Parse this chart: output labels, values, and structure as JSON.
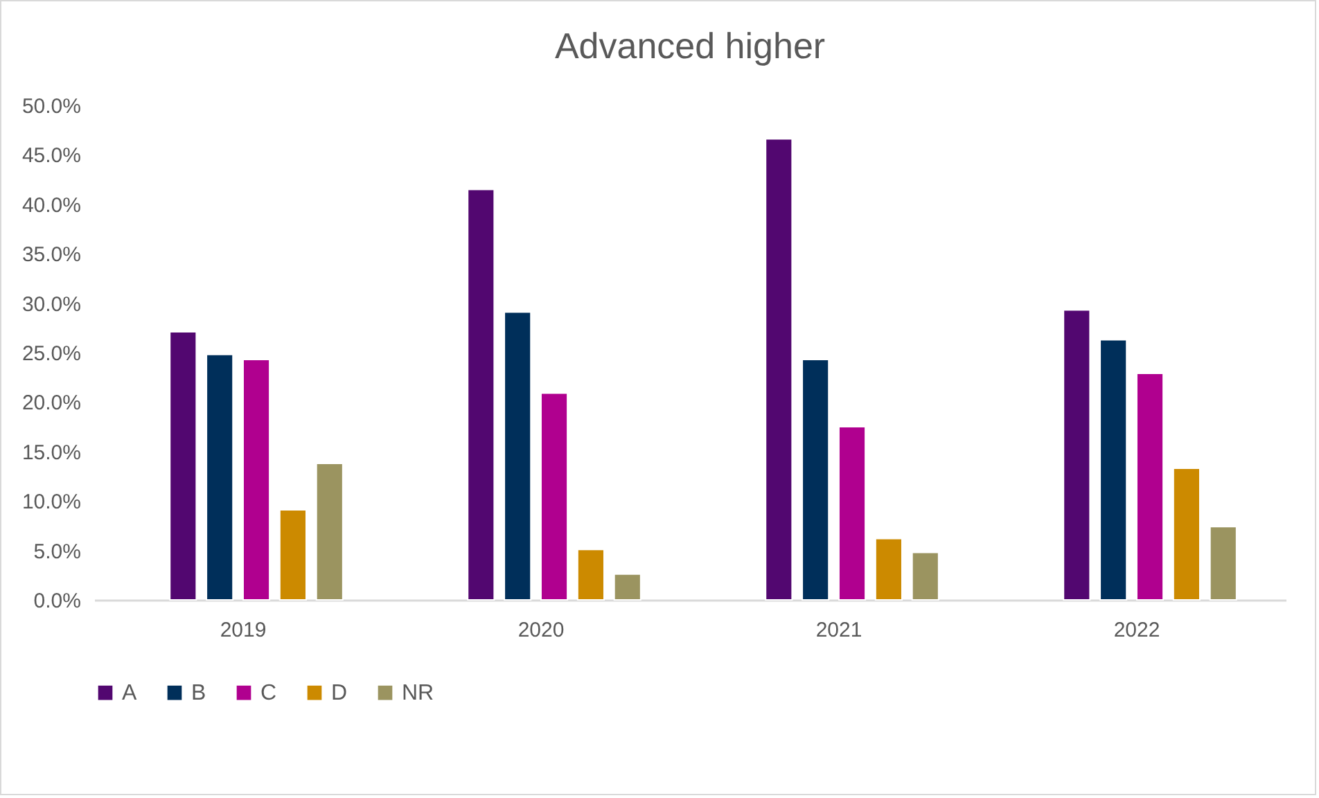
{
  "chart_data": {
    "type": "bar",
    "title": "Advanced higher",
    "categories": [
      "2019",
      "2020",
      "2021",
      "2022"
    ],
    "series": [
      {
        "name": "A",
        "color": "#520770",
        "values": [
          27.1,
          41.5,
          46.6,
          29.3
        ]
      },
      {
        "name": "B",
        "color": "#002f5a",
        "values": [
          24.8,
          29.1,
          24.3,
          26.3
        ]
      },
      {
        "name": "C",
        "color": "#b0008f",
        "values": [
          24.3,
          20.9,
          17.5,
          22.9
        ]
      },
      {
        "name": "D",
        "color": "#cc8a00",
        "values": [
          9.1,
          5.1,
          6.2,
          13.3
        ]
      },
      {
        "name": "NR",
        "color": "#9b9460",
        "values": [
          13.8,
          2.6,
          4.8,
          7.4
        ]
      }
    ],
    "ylim": [
      0,
      50
    ],
    "yticks": [
      {
        "value": 0,
        "label": "0.0%"
      },
      {
        "value": 5,
        "label": "5.0%"
      },
      {
        "value": 10,
        "label": "10.0%"
      },
      {
        "value": 15,
        "label": "15.0%"
      },
      {
        "value": 20,
        "label": "20.0%"
      },
      {
        "value": 25,
        "label": "25.0%"
      },
      {
        "value": 30,
        "label": "30.0%"
      },
      {
        "value": 35,
        "label": "35.0%"
      },
      {
        "value": 40,
        "label": "40.0%"
      },
      {
        "value": 45,
        "label": "45.0%"
      },
      {
        "value": 50,
        "label": "50.0%"
      }
    ],
    "grid": false,
    "legend": "bottom"
  }
}
